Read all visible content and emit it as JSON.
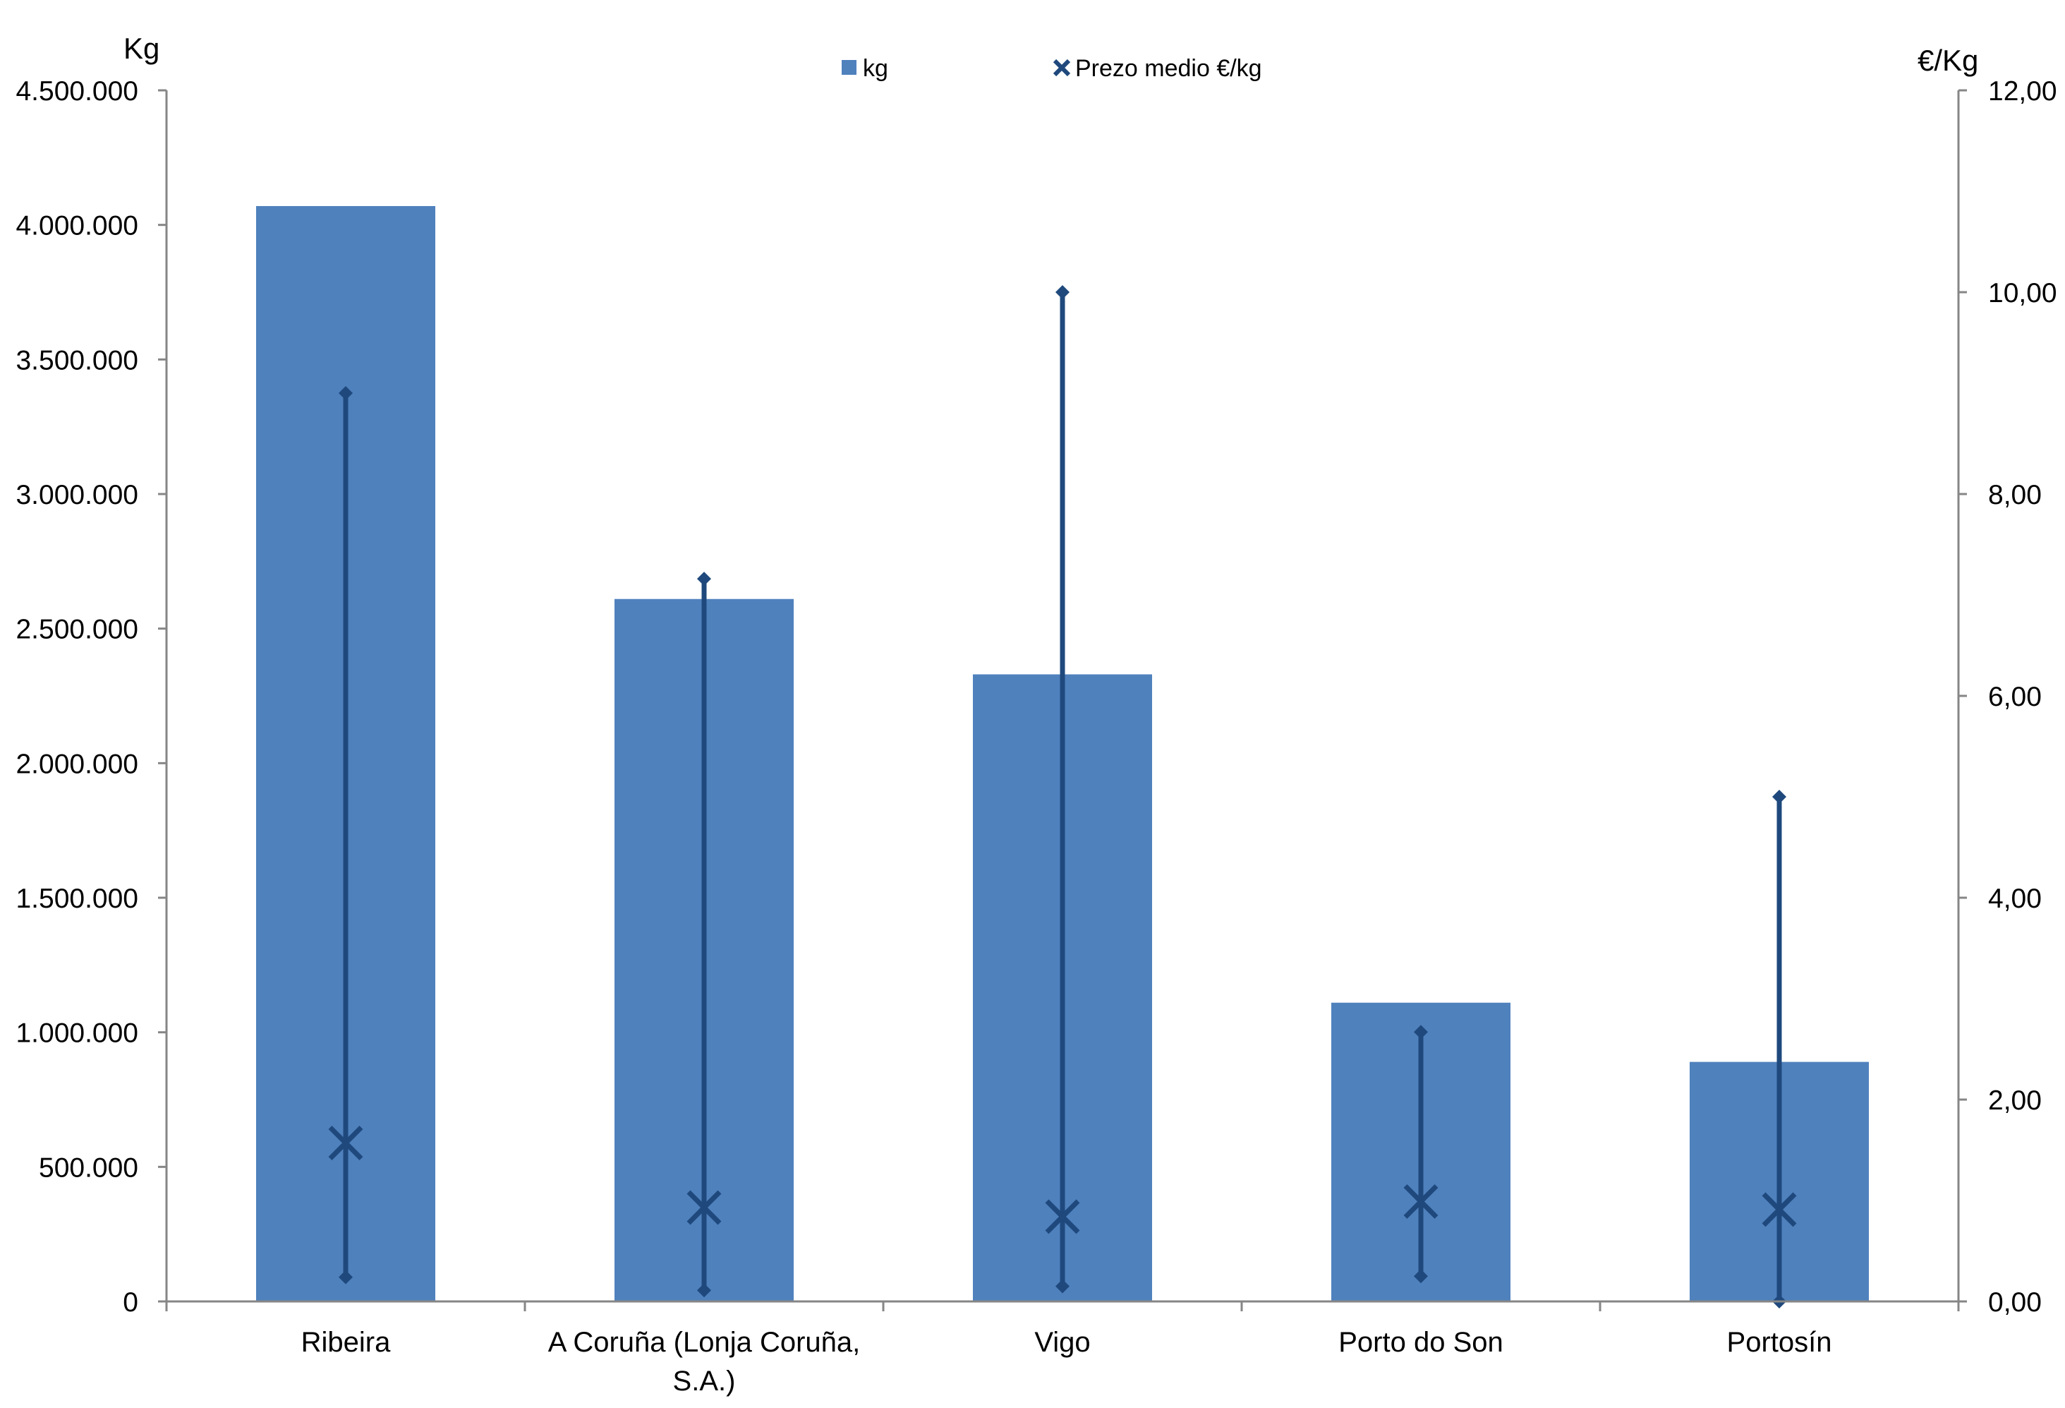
{
  "chart_data": {
    "type": "bar",
    "categories": [
      [
        "Ribeira"
      ],
      [
        "A Coruña (Lonja Coruña,",
        "S.A.)"
      ],
      [
        "Vigo"
      ],
      [
        "Porto do Son"
      ],
      [
        "Portosín"
      ]
    ],
    "y_left_unit": "Kg",
    "y_right_unit": "€/Kg",
    "y_left_range": [
      0,
      4500000
    ],
    "y_left_ticks": [
      {
        "v": 0,
        "label": "0"
      },
      {
        "v": 500000,
        "label": "500.000"
      },
      {
        "v": 1000000,
        "label": "1.000.000"
      },
      {
        "v": 1500000,
        "label": "1.500.000"
      },
      {
        "v": 2000000,
        "label": "2.000.000"
      },
      {
        "v": 2500000,
        "label": "2.500.000"
      },
      {
        "v": 3000000,
        "label": "3.000.000"
      },
      {
        "v": 3500000,
        "label": "3.500.000"
      },
      {
        "v": 4000000,
        "label": "4.000.000"
      },
      {
        "v": 4500000,
        "label": "4.500.000"
      }
    ],
    "y_right_range": [
      0,
      12
    ],
    "y_right_ticks": [
      {
        "v": 0,
        "label": "0,00"
      },
      {
        "v": 2,
        "label": "2,00"
      },
      {
        "v": 4,
        "label": "4,00"
      },
      {
        "v": 6,
        "label": "6,00"
      },
      {
        "v": 8,
        "label": "8,00"
      },
      {
        "v": 10,
        "label": "10,00"
      },
      {
        "v": 12,
        "label": "12,00"
      }
    ],
    "series": [
      {
        "name": "kg",
        "axis": "left",
        "kind": "bar",
        "color": "#4f81bd",
        "values": [
          4070000,
          2610000,
          2330000,
          1110000,
          890000
        ]
      },
      {
        "name": "Prezo medio €/kg",
        "axis": "right",
        "kind": "marker",
        "color": "#1f497d",
        "values": [
          1.57,
          0.93,
          0.84,
          0.99,
          0.91
        ]
      }
    ],
    "price_ranges": {
      "color": "#1f497d",
      "min": [
        0.24,
        0.11,
        0.15,
        0.25,
        0.0
      ],
      "max": [
        9.0,
        7.16,
        10.0,
        2.67,
        5.0
      ]
    },
    "legend_position": "top"
  }
}
